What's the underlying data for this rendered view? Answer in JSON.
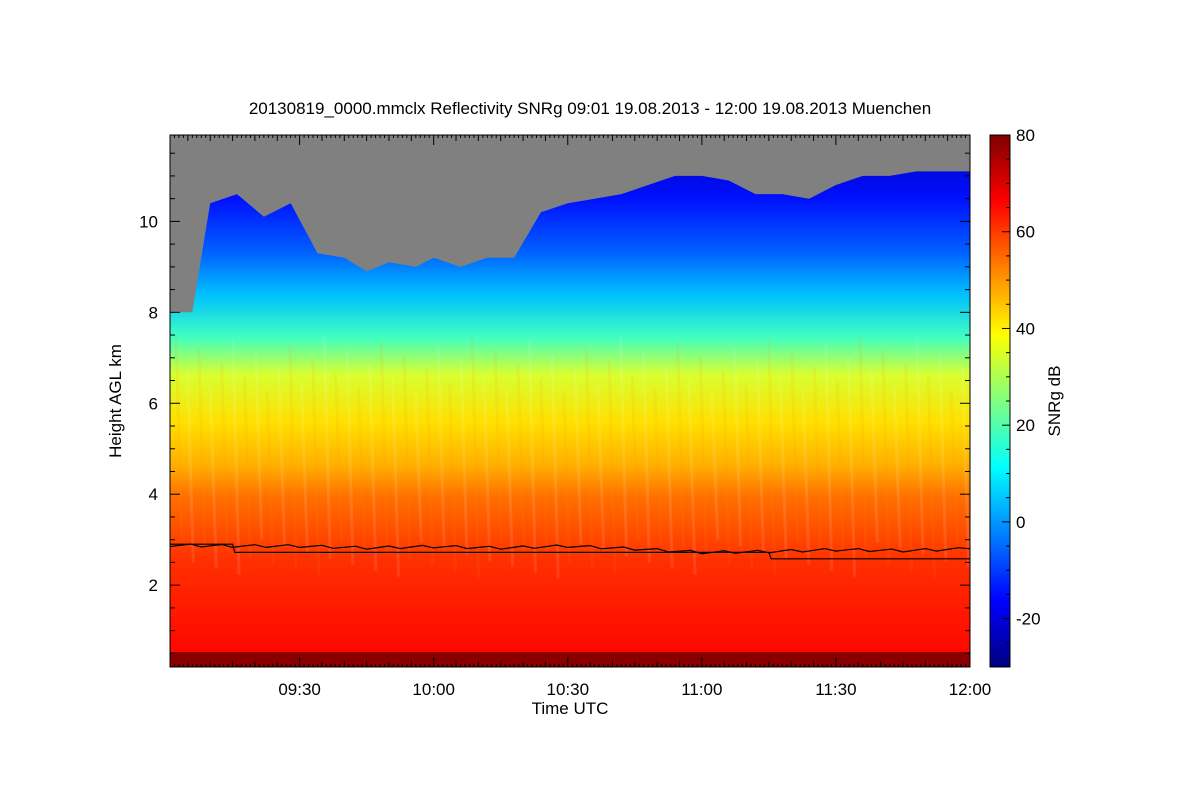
{
  "chart_data": {
    "type": "heatmap",
    "title": "20130819_0000.mmclx Reflectivity SNRg   09:01 19.08.2013 - 12:00 19.08.2013 Muenchen",
    "xlabel": "Time UTC",
    "ylabel": "Height AGL km",
    "colorbar_label": "SNRg dB",
    "x_start": "09:01",
    "x_end": "12:00",
    "xlim_minutes_utc": [
      541,
      720
    ],
    "ylim_km": [
      0.2,
      11.9
    ],
    "x_ticks": [
      {
        "label": "09:30",
        "minute": 570
      },
      {
        "label": "10:00",
        "minute": 600
      },
      {
        "label": "10:30",
        "minute": 630
      },
      {
        "label": "11:00",
        "minute": 660
      },
      {
        "label": "11:30",
        "minute": 690
      },
      {
        "label": "12:00",
        "minute": 720
      }
    ],
    "y_ticks": [
      {
        "label": "2",
        "value": 2
      },
      {
        "label": "4",
        "value": 4
      },
      {
        "label": "6",
        "value": 6
      },
      {
        "label": "8",
        "value": 8
      },
      {
        "label": "10",
        "value": 10
      }
    ],
    "colorbar": {
      "range": [
        -30,
        80
      ],
      "ticks": [
        {
          "label": "-20",
          "value": -20
        },
        {
          "label": "0",
          "value": 0
        },
        {
          "label": "20",
          "value": 20
        },
        {
          "label": "40",
          "value": 40
        },
        {
          "label": "60",
          "value": 60
        },
        {
          "label": "80",
          "value": 80
        }
      ],
      "colors": [
        "#00007f",
        "#0000ff",
        "#0080ff",
        "#00ffff",
        "#80ff80",
        "#ffff00",
        "#ff8000",
        "#ff0000",
        "#7f0000"
      ]
    },
    "no_signal_color": "#808080",
    "cloud_top_km": [
      [
        541,
        8.0
      ],
      [
        546,
        8.0
      ],
      [
        550,
        10.4
      ],
      [
        556,
        10.6
      ],
      [
        562,
        10.1
      ],
      [
        568,
        10.4
      ],
      [
        574,
        9.3
      ],
      [
        580,
        9.2
      ],
      [
        585,
        8.9
      ],
      [
        590,
        9.1
      ],
      [
        596,
        9.0
      ],
      [
        600,
        9.2
      ],
      [
        606,
        9.0
      ],
      [
        612,
        9.2
      ],
      [
        618,
        9.2
      ],
      [
        624,
        10.2
      ],
      [
        630,
        10.4
      ],
      [
        636,
        10.5
      ],
      [
        642,
        10.6
      ],
      [
        648,
        10.8
      ],
      [
        654,
        11.0
      ],
      [
        660,
        11.0
      ],
      [
        666,
        10.9
      ],
      [
        672,
        10.6
      ],
      [
        678,
        10.6
      ],
      [
        684,
        10.5
      ],
      [
        690,
        10.8
      ],
      [
        696,
        11.0
      ],
      [
        702,
        11.0
      ],
      [
        708,
        11.1
      ],
      [
        714,
        11.1
      ],
      [
        720,
        11.1
      ]
    ],
    "melting_layer_km": [
      [
        541,
        2.88
      ],
      [
        555,
        2.86
      ],
      [
        570,
        2.86
      ],
      [
        585,
        2.82
      ],
      [
        600,
        2.85
      ],
      [
        615,
        2.82
      ],
      [
        630,
        2.86
      ],
      [
        645,
        2.8
      ],
      [
        660,
        2.72
      ],
      [
        675,
        2.74
      ],
      [
        690,
        2.78
      ],
      [
        705,
        2.76
      ],
      [
        720,
        2.8
      ]
    ],
    "lower_boundary_km": [
      [
        541,
        2.9
      ],
      [
        555,
        2.9
      ],
      [
        555.5,
        2.72
      ],
      [
        600,
        2.72
      ],
      [
        675,
        2.72
      ],
      [
        675.5,
        2.58
      ],
      [
        720,
        2.58
      ]
    ]
  }
}
